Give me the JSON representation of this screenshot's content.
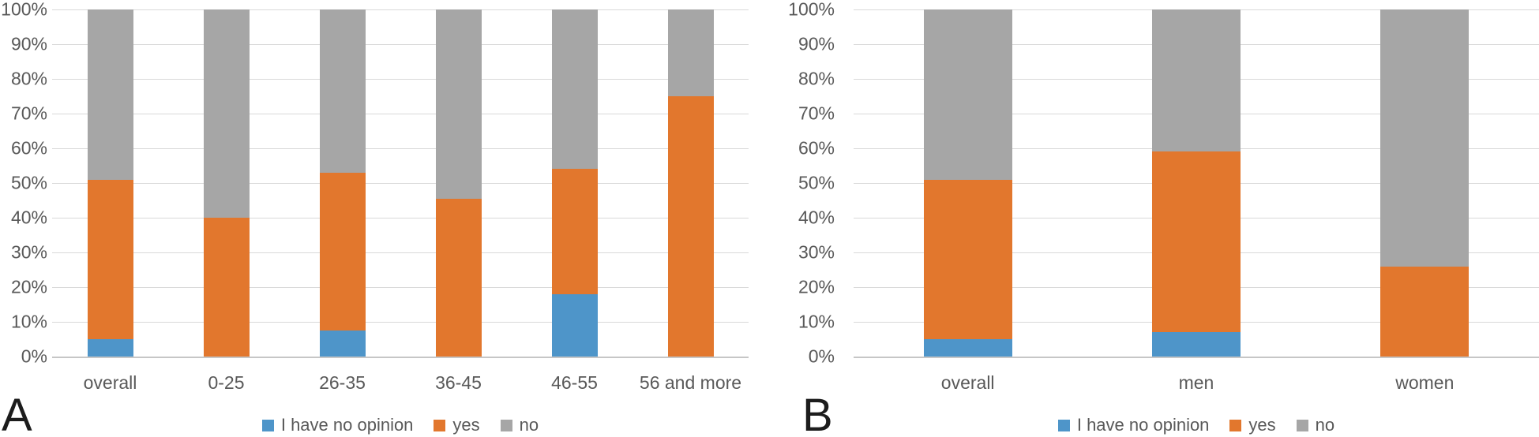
{
  "colors": {
    "no_opinion": "#4e95c9",
    "yes": "#e2772d",
    "no": "#a6a6a6",
    "axis_text": "#595959",
    "gridline": "#d9d9d9",
    "axis_line": "#c6c6c6",
    "panel_letter": "#1c1c1c"
  },
  "chart_data": [
    {
      "type": "bar",
      "stacked": true,
      "percent_stacked": true,
      "panel_label": "A",
      "title": "",
      "xlabel": "",
      "ylabel": "",
      "ylim": [
        0,
        100
      ],
      "grid": true,
      "legend_position": "bottom",
      "categories": [
        "overall",
        "0-25",
        "26-35",
        "36-45",
        "46-55",
        "56 and more"
      ],
      "yticks_percent": [
        100,
        90,
        80,
        70,
        60,
        50,
        40,
        30,
        20,
        10,
        0
      ],
      "ytick_labels": [
        "100%",
        "90%",
        "80%",
        "70%",
        "60%",
        "50%",
        "40%",
        "30%",
        "20%",
        "10%",
        "0%"
      ],
      "series": [
        {
          "name": "I have no opinion",
          "color_key": "no_opinion",
          "values": [
            5,
            0,
            7.5,
            0,
            18,
            0
          ]
        },
        {
          "name": "yes",
          "color_key": "yes",
          "values": [
            46,
            40,
            45.5,
            45.5,
            36,
            75
          ]
        },
        {
          "name": "no",
          "color_key": "no",
          "values": [
            49,
            60,
            47,
            54.5,
            46,
            25
          ]
        }
      ]
    },
    {
      "type": "bar",
      "stacked": true,
      "percent_stacked": true,
      "panel_label": "B",
      "title": "",
      "xlabel": "",
      "ylabel": "",
      "ylim": [
        0,
        100
      ],
      "grid": true,
      "legend_position": "bottom",
      "categories": [
        "overall",
        "men",
        "women"
      ],
      "yticks_percent": [
        100,
        90,
        80,
        70,
        60,
        50,
        40,
        30,
        20,
        10,
        0
      ],
      "ytick_labels": [
        "100%",
        "90%",
        "80%",
        "70%",
        "60%",
        "50%",
        "40%",
        "30%",
        "20%",
        "10%",
        "0%"
      ],
      "series": [
        {
          "name": "I have no opinion",
          "color_key": "no_opinion",
          "values": [
            5,
            7,
            0
          ]
        },
        {
          "name": "yes",
          "color_key": "yes",
          "values": [
            46,
            52,
            26
          ]
        },
        {
          "name": "no",
          "color_key": "no",
          "values": [
            49,
            41,
            74
          ]
        }
      ]
    }
  ]
}
